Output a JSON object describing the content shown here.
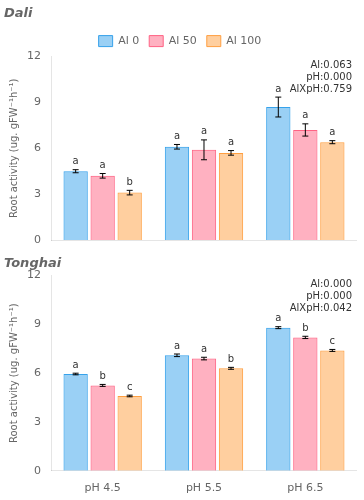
{
  "chart_data": [
    {
      "type": "bar",
      "title": "Dali",
      "categories": [
        "pH 4.5",
        "pH 5.5",
        "pH 6.5"
      ],
      "series": [
        {
          "name": "Al 0",
          "values": [
            4.5,
            6.1,
            8.7
          ],
          "errors": [
            0.1,
            0.15,
            0.65
          ],
          "letters": [
            "a",
            "a",
            "a"
          ]
        },
        {
          "name": "Al 50",
          "values": [
            4.2,
            5.9,
            7.2
          ],
          "errors": [
            0.15,
            0.65,
            0.4
          ],
          "letters": [
            "a",
            "a",
            "a"
          ]
        },
        {
          "name": "Al 100",
          "values": [
            3.1,
            5.7,
            6.4
          ],
          "errors": [
            0.15,
            0.15,
            0.1
          ],
          "letters": [
            "b",
            "a",
            "a"
          ]
        }
      ],
      "annotation": "Al:0.063\npH:0.000\nAlXpH:0.759",
      "ylabel": "Root activity (ug. gFW⁻¹h⁻¹)",
      "ylim": [
        0,
        12
      ],
      "yticks": [
        0,
        3,
        6,
        9,
        12
      ],
      "grid": false,
      "legend": "upper center",
      "tick_labels": "y"
    },
    {
      "type": "bar",
      "title": "Tonghai",
      "categories": [
        "pH 4.5",
        "pH 5.5",
        "pH 6.5"
      ],
      "series": [
        {
          "name": "Al 0",
          "values": [
            5.95,
            7.1,
            8.8
          ],
          "errors": [
            0.05,
            0.08,
            0.06
          ],
          "letters": [
            "a",
            "a",
            "a"
          ]
        },
        {
          "name": "Al 50",
          "values": [
            5.25,
            6.9,
            8.2
          ],
          "errors": [
            0.06,
            0.08,
            0.07
          ],
          "letters": [
            "b",
            "a",
            "b"
          ]
        },
        {
          "name": "Al 100",
          "values": [
            4.6,
            6.3,
            7.4
          ],
          "errors": [
            0.05,
            0.06,
            0.06
          ],
          "letters": [
            "c",
            "b",
            "c"
          ]
        }
      ],
      "annotation": "Al:0.000\npH:0.000\nAlXpH:0.042",
      "ylabel": "Root activity (ug. gFW⁻¹h⁻¹)",
      "ylim": [
        0,
        12
      ],
      "yticks": [
        0,
        3,
        6,
        9,
        12
      ],
      "grid": false
    }
  ]
}
